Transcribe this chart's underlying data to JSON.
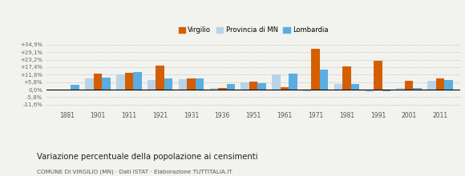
{
  "years": [
    1881,
    1901,
    1911,
    1921,
    1931,
    1936,
    1951,
    1961,
    1971,
    1981,
    1991,
    2001,
    2011
  ],
  "virgilio": [
    null,
    12.5,
    13.0,
    18.5,
    8.5,
    1.0,
    6.0,
    2.0,
    31.5,
    18.0,
    22.5,
    7.0,
    8.5
  ],
  "provincia_mn": [
    null,
    8.5,
    12.0,
    7.5,
    8.0,
    1.5,
    5.5,
    12.0,
    -1.5,
    4.5,
    -2.0,
    1.5,
    7.0
  ],
  "lombardia": [
    3.5,
    9.5,
    13.5,
    8.5,
    8.5,
    4.5,
    5.0,
    12.5,
    15.5,
    4.5,
    -1.5,
    1.5,
    7.5
  ],
  "color_virgilio": "#d45f00",
  "color_provincia": "#b8d4e8",
  "color_lombardia": "#5aade0",
  "ylim_min": -14.5,
  "ylim_max": 38.5,
  "yticks": [
    -11.6,
    -5.8,
    0.0,
    5.8,
    11.6,
    17.4,
    23.2,
    29.1,
    34.9
  ],
  "ytick_labels": [
    "-11,6%",
    "-5,8%",
    "0,0%",
    "+5,8%",
    "+11,6%",
    "+17,4%",
    "+23,2%",
    "+29,1%",
    "+34,9%"
  ],
  "title": "Variazione percentuale della popolazione ai censimenti",
  "subtitle": "COMUNE DI VIRGILIO (MN) · Dati ISTAT · Elaborazione TUTTITALIA.IT",
  "legend_labels": [
    "Virgilio",
    "Provincia di MN",
    "Lombardia"
  ],
  "background_color": "#f2f2ee",
  "bar_width": 0.27
}
